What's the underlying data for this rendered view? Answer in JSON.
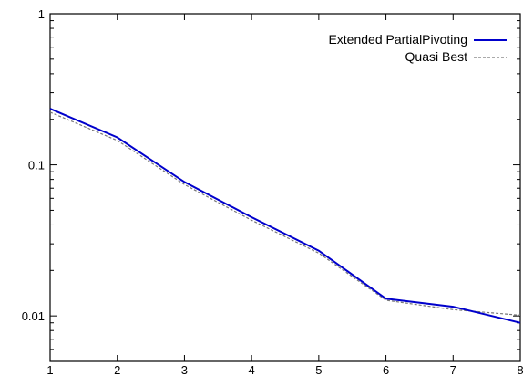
{
  "chart_data": {
    "type": "line",
    "title": "",
    "xlabel": "",
    "ylabel": "",
    "xlim": [
      1,
      8
    ],
    "ylim": [
      0.005,
      1
    ],
    "yscale": "log",
    "grid": false,
    "legend_position": "top-right",
    "x_ticks": [
      "1",
      "2",
      "3",
      "4",
      "5",
      "6",
      "7",
      "8"
    ],
    "y_ticks": [
      {
        "value": 1,
        "label": "1"
      },
      {
        "value": 0.1,
        "label": "0.1"
      },
      {
        "value": 0.01,
        "label": "0.01"
      }
    ],
    "x": [
      1,
      2,
      3,
      4,
      5,
      6,
      7,
      8
    ],
    "series": [
      {
        "name": "Extended PartialPivoting",
        "color": "#0000cc",
        "style": "solid",
        "values": [
          0.235,
          0.152,
          0.077,
          0.045,
          0.027,
          0.013,
          0.0115,
          0.009
        ]
      },
      {
        "name": "Quasi Best",
        "color": "#777777",
        "style": "dashed",
        "values": [
          0.223,
          0.145,
          0.074,
          0.043,
          0.026,
          0.0127,
          0.011,
          0.0101
        ]
      }
    ]
  }
}
